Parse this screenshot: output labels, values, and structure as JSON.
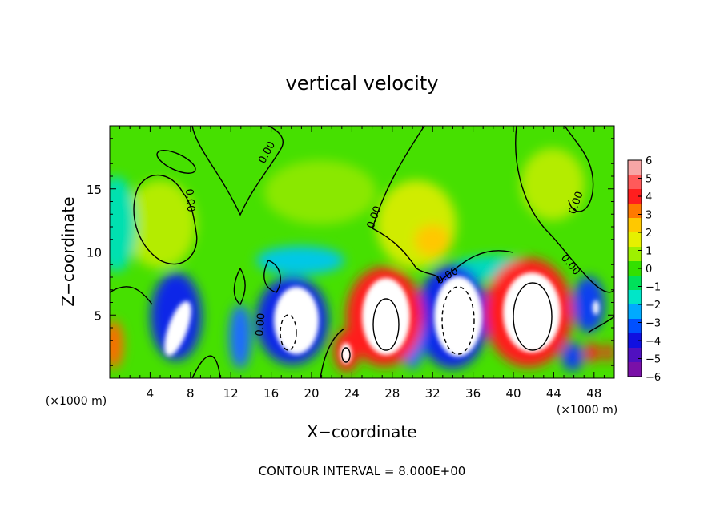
{
  "chart_data": {
    "type": "heatmap",
    "title": "vertical velocity",
    "xlabel": "X−coordinate",
    "ylabel": "Z−coordinate",
    "x_units_label": "(×1000 m)",
    "y_units_label": "(×1000 m)",
    "xlim": [
      0,
      50
    ],
    "ylim": [
      0,
      20
    ],
    "x_ticks": [
      4,
      8,
      12,
      16,
      20,
      24,
      28,
      32,
      36,
      40,
      44,
      48
    ],
    "y_ticks": [
      5,
      10,
      15
    ],
    "x_tick_labels": [
      "4",
      "8",
      "12",
      "16",
      "20",
      "24",
      "28",
      "32",
      "36",
      "40",
      "44",
      "48"
    ],
    "y_tick_labels": [
      "5",
      "10",
      "15"
    ],
    "colorbar": {
      "range": [
        -6,
        6
      ],
      "tick_labels": [
        "6",
        "5",
        "4",
        "3",
        "2",
        "1",
        "0",
        "−1",
        "−2",
        "−3",
        "−4",
        "−5",
        "−6"
      ],
      "colors": [
        "#f7a6a6",
        "#ff5a5a",
        "#ff1e1e",
        "#ff7a00",
        "#ffc800",
        "#e6f000",
        "#9ef000",
        "#33e000",
        "#00e05a",
        "#00e6c8",
        "#00aaff",
        "#0050ff",
        "#1010e0",
        "#5010c0",
        "#7a10a8"
      ]
    },
    "contour_labels": [
      "0.00",
      "0.00",
      "0.00",
      "0.00",
      "0.00",
      "0.00",
      "0.00",
      "0.00"
    ],
    "annotation": "CONTOUR INTERVAL = 8.000E+00",
    "features": [
      {
        "x": 5.5,
        "z": 3.5,
        "w": 0
      },
      {
        "x": 18.5,
        "z": 4.5,
        "w": 0
      },
      {
        "x": 27,
        "z": 4,
        "w": 0
      },
      {
        "x": 34,
        "z": 4,
        "w": 0
      },
      {
        "x": 42.5,
        "z": 5,
        "w": 0
      }
    ]
  }
}
